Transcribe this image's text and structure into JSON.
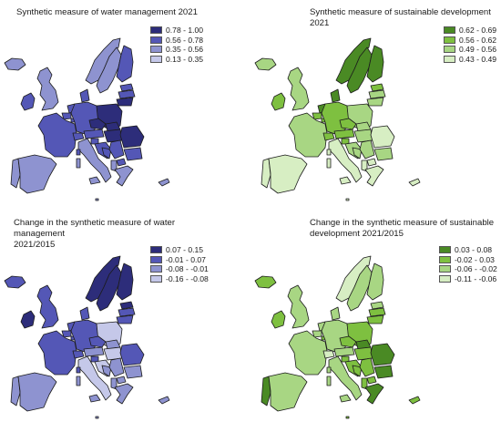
{
  "maps": [
    {
      "title": "Synthetic measure of water management  2021",
      "legend": [
        {
          "label": "0.78 - 1.00",
          "color": "#2d2d7a"
        },
        {
          "label": "0.56 - 0.78",
          "color": "#5457b6"
        },
        {
          "label": "0.35 - 0.56",
          "color": "#8e93d0"
        },
        {
          "label": "0.13 - 0.35",
          "color": "#c5c8e9"
        }
      ],
      "regions": {
        "Iceland": 2,
        "Ireland": 1,
        "United Kingdom": 2,
        "Norway": 2,
        "Sweden": 2,
        "Finland": 1,
        "Estonia": 1,
        "Latvia": 1,
        "Lithuania": 0,
        "Denmark": 1,
        "Netherlands": 1,
        "Belgium": 1,
        "Luxembourg": 1,
        "Germany": 1,
        "Poland": 0,
        "France": 1,
        "Portugal": 2,
        "Spain": 2,
        "Italy": 2,
        "Switzerland": 1,
        "Austria": 1,
        "Czechia": 0,
        "Slovakia": 0,
        "Hungary": 0,
        "Slovenia": 1,
        "Croatia": 1,
        "Bosnia": 1,
        "Serbia": 1,
        "Romania": 0,
        "Bulgaria": 1,
        "North Macedonia": 1,
        "Albania": 2,
        "Greece": 2,
        "Cyprus": 2,
        "Malta": 2,
        "Sardinia": 2,
        "Sicily": 2,
        "Corsica": 1
      }
    },
    {
      "title": "Synthetic measure of sustainable development 2021",
      "legend": [
        {
          "label": "0.62 - 0.69",
          "color": "#4a8a24"
        },
        {
          "label": "0.56 - 0.62",
          "color": "#7ec040"
        },
        {
          "label": "0.49 - 0.56",
          "color": "#a8d683"
        },
        {
          "label": "0.43 - 0.49",
          "color": "#d7eec3"
        }
      ],
      "regions": {
        "Iceland": 2,
        "Ireland": 1,
        "United Kingdom": 2,
        "Norway": 0,
        "Sweden": 0,
        "Finland": 0,
        "Estonia": 1,
        "Latvia": 2,
        "Lithuania": 2,
        "Denmark": 0,
        "Netherlands": 0,
        "Belgium": 1,
        "Luxembourg": 1,
        "Germany": 1,
        "Poland": 2,
        "France": 2,
        "Portugal": 3,
        "Spain": 3,
        "Italy": 3,
        "Switzerland": 1,
        "Austria": 1,
        "Czechia": 1,
        "Slovakia": 2,
        "Hungary": 2,
        "Slovenia": 1,
        "Croatia": 2,
        "Bosnia": 2,
        "Serbia": 2,
        "Romania": 3,
        "Bulgaria": 2,
        "North Macedonia": 3,
        "Albania": 3,
        "Greece": 3,
        "Cyprus": 3,
        "Malta": 3,
        "Sardinia": 3,
        "Sicily": 3,
        "Corsica": 3
      }
    },
    {
      "title": "Change in the synthetic measure of water management\n2021/2015",
      "legend": [
        {
          "label": "0.07 - 0.15",
          "color": "#2d2d7a"
        },
        {
          "label": "-0.01 - 0.07",
          "color": "#5457b6"
        },
        {
          "label": "-0.08 - -0.01",
          "color": "#8e93d0"
        },
        {
          "label": "-0.16 - -0.08",
          "color": "#c5c8e9"
        }
      ],
      "regions": {
        "Iceland": 1,
        "Ireland": 0,
        "United Kingdom": 1,
        "Norway": 0,
        "Sweden": 0,
        "Finland": 0,
        "Estonia": 0,
        "Latvia": 1,
        "Lithuania": 1,
        "Denmark": 1,
        "Netherlands": 1,
        "Belgium": 1,
        "Luxembourg": 1,
        "Germany": 1,
        "Poland": 3,
        "France": 1,
        "Portugal": 2,
        "Spain": 2,
        "Italy": 3,
        "Switzerland": 1,
        "Austria": 2,
        "Czechia": 1,
        "Slovakia": 2,
        "Hungary": 3,
        "Slovenia": 1,
        "Croatia": 3,
        "Bosnia": 2,
        "Serbia": 2,
        "Romania": 1,
        "Bulgaria": 2,
        "North Macedonia": 2,
        "Albania": 2,
        "Greece": 2,
        "Cyprus": 2,
        "Malta": 2,
        "Sardinia": 2,
        "Sicily": 2,
        "Corsica": 1
      }
    },
    {
      "title": "Change in the synthetic measure of sustainable\ndevelopment 2021/2015",
      "legend": [
        {
          "label": "0.03 - 0.08",
          "color": "#4a8a24"
        },
        {
          "label": "-0.02 - 0.03",
          "color": "#7ec040"
        },
        {
          "label": "-0.06 - -0.02",
          "color": "#a8d683"
        },
        {
          "label": "-0.11 - -0.06",
          "color": "#d7eec3"
        }
      ],
      "regions": {
        "Iceland": 1,
        "Ireland": 1,
        "United Kingdom": 2,
        "Norway": 3,
        "Sweden": 2,
        "Finland": 2,
        "Estonia": 2,
        "Latvia": 1,
        "Lithuania": 1,
        "Denmark": 2,
        "Netherlands": 2,
        "Belgium": 2,
        "Luxembourg": 1,
        "Germany": 2,
        "Poland": 1,
        "France": 2,
        "Portugal": 0,
        "Spain": 2,
        "Italy": 2,
        "Switzerland": 3,
        "Austria": 2,
        "Czechia": 1,
        "Slovakia": 0,
        "Hungary": 1,
        "Slovenia": 1,
        "Croatia": 1,
        "Bosnia": 1,
        "Serbia": 1,
        "Romania": 0,
        "Bulgaria": 0,
        "North Macedonia": 1,
        "Albania": 1,
        "Greece": 0,
        "Cyprus": 1,
        "Malta": 1,
        "Sardinia": 2,
        "Sicily": 2,
        "Corsica": 2
      }
    }
  ]
}
